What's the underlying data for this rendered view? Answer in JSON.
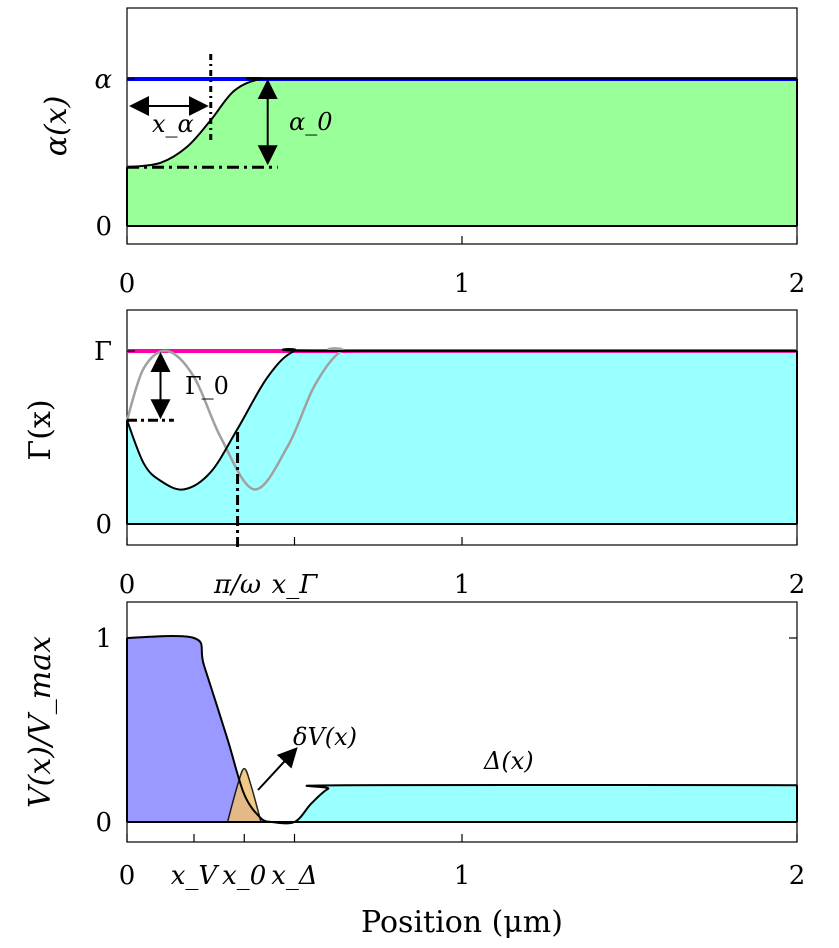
{
  "chart_data": [
    {
      "type": "area",
      "panel": "alpha",
      "ylabel": "α(x)",
      "xlim": [
        0,
        2
      ],
      "ylim": [
        -0.08,
        1.45
      ],
      "xticks": [
        0,
        1,
        2
      ],
      "xtick_labels": [
        "0",
        "1",
        "2"
      ],
      "yticks": [
        0,
        1
      ],
      "ytick_labels": [
        "0",
        "α"
      ],
      "colors": {
        "fill": "#99ff99",
        "top_line": "#0000ff",
        "curve": "#000000"
      },
      "series": [
        {
          "x": [
            0,
            0.1,
            0.18,
            0.25,
            0.32,
            0.4,
            0.5,
            2
          ],
          "y": [
            0.4,
            0.43,
            0.54,
            0.72,
            0.92,
            1.0,
            1.0,
            1.0
          ]
        }
      ],
      "annotations": {
        "x_alpha": "x_α",
        "alpha0": "α_0",
        "x_alpha_value": 0.25,
        "alpha0_base": 0.4
      }
    },
    {
      "type": "area",
      "panel": "gamma",
      "ylabel": "Γ(x)",
      "xlim": [
        0,
        2
      ],
      "ylim": [
        -0.12,
        1.1
      ],
      "xticks": [
        0,
        1,
        2
      ],
      "xtick_labels": [
        "0",
        "1",
        "2"
      ],
      "extra_xtick_labels": [
        "π/ω",
        "x_Γ"
      ],
      "extra_xticks": [
        0.33,
        0.5
      ],
      "yticks": [
        0,
        1
      ],
      "ytick_labels": [
        "0",
        "Γ"
      ],
      "colors": {
        "fill": "#99ffff",
        "top_line": "#ff00aa",
        "curve": "#000000",
        "alt_curve": "#a0a0a0"
      },
      "series": [
        {
          "name": "black",
          "x": [
            0,
            0.05,
            0.1,
            0.17,
            0.25,
            0.33,
            0.42,
            0.5,
            0.6,
            2
          ],
          "y": [
            0.6,
            0.35,
            0.25,
            0.2,
            0.3,
            0.55,
            0.85,
            1.0,
            1.0,
            1.0
          ]
        },
        {
          "name": "gray",
          "x": [
            0,
            0.05,
            0.12,
            0.2,
            0.28,
            0.38,
            0.48,
            0.56,
            0.64,
            0.72,
            2
          ],
          "y": [
            0.6,
            0.9,
            1.0,
            0.85,
            0.5,
            0.2,
            0.45,
            0.8,
            1.0,
            1.0,
            1.0
          ]
        }
      ],
      "annotations": {
        "gamma0": "Γ_0",
        "gamma0_base": 0.6,
        "pi_over_omega": 0.33
      }
    },
    {
      "type": "area",
      "panel": "potential",
      "ylabel": "V(x)/V_max",
      "xlabel": "Position (μm)",
      "xlim": [
        0,
        2
      ],
      "ylim": [
        -0.1,
        1.12
      ],
      "xticks": [
        0,
        1,
        2
      ],
      "xtick_labels": [
        "0",
        "1",
        "2"
      ],
      "extra_xtick_labels": [
        "x_V",
        "x_0",
        "x_Δ"
      ],
      "extra_xticks": [
        0.2,
        0.35,
        0.5
      ],
      "yticks": [
        0,
        1
      ],
      "ytick_labels": [
        "0",
        "1"
      ],
      "colors": {
        "V_fill": "#9999ff",
        "delta_fill": "#99ffff",
        "dV_fill": "#f0c070",
        "curve": "#000000"
      },
      "series": [
        {
          "name": "V",
          "x": [
            0,
            0.2,
            0.23,
            0.3,
            0.35,
            0.4,
            0.43
          ],
          "y": [
            1.0,
            1.0,
            0.85,
            0.45,
            0.15,
            0.02,
            0.0
          ]
        },
        {
          "name": "Δ(x)",
          "x": [
            0.43,
            0.5,
            0.55,
            0.6,
            0.65,
            2
          ],
          "y": [
            0.0,
            0.0,
            0.1,
            0.18,
            0.2,
            0.2
          ]
        },
        {
          "name": "δV(x)",
          "x": [
            0.3,
            0.33,
            0.35,
            0.37,
            0.4
          ],
          "y": [
            0.0,
            0.2,
            0.29,
            0.2,
            0.0
          ]
        }
      ],
      "annotations": {
        "dV": "δV(x)",
        "delta": "Δ(x)"
      }
    }
  ]
}
